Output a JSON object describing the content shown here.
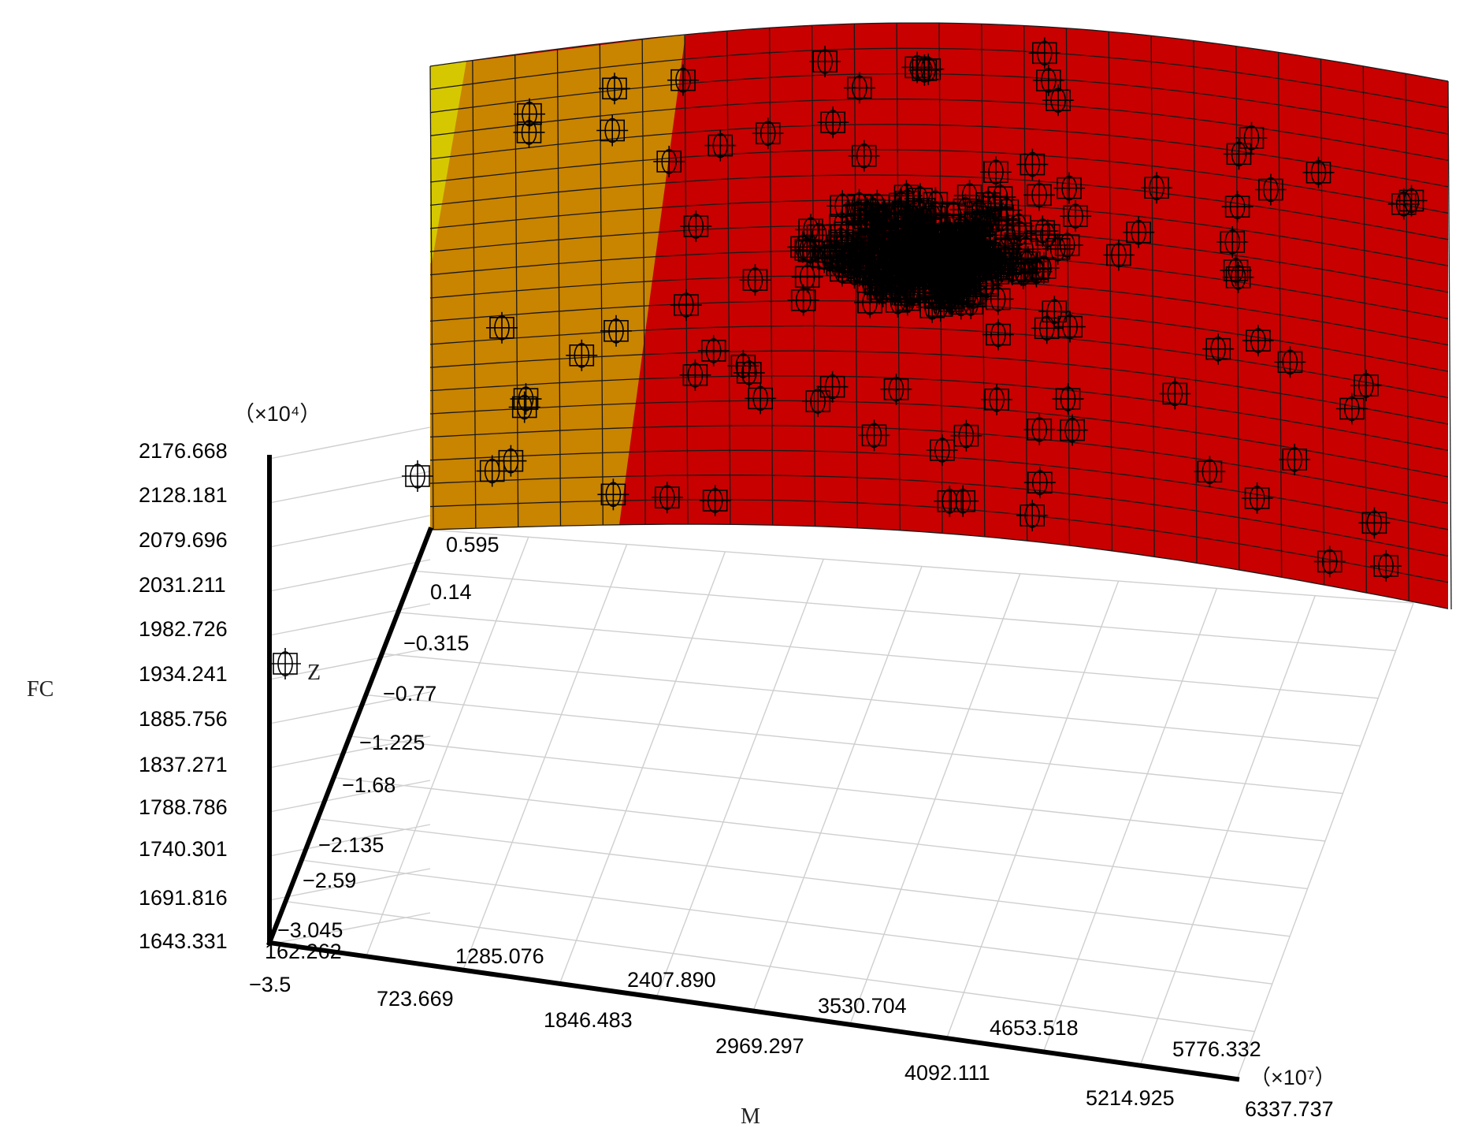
{
  "chart_data": {
    "type": "surface3d",
    "axes": {
      "fc": {
        "title": "FC",
        "multiplier": "（×10⁴）",
        "range": [
          1643.331,
          2176.668
        ],
        "ticks": [
          "1643.331",
          "1691.816",
          "1740.301",
          "1788.786",
          "1837.271",
          "1885.756",
          "1934.241",
          "1982.726",
          "2031.211",
          "2079.696",
          "2128.181",
          "2176.668"
        ]
      },
      "m": {
        "title": "M",
        "multiplier": "（×10⁷）",
        "range": [
          162.262,
          6337.737
        ],
        "ticks_upper": [
          "1285.076",
          "2407.890",
          "3530.704",
          "4653.518",
          "5776.332"
        ],
        "ticks_lower": [
          "162.262",
          "723.669",
          "1846.483",
          "2969.297",
          "4092.111",
          "5214.925",
          "6337.737"
        ]
      },
      "z": {
        "title": "Z",
        "range": [
          -3.5,
          0.595
        ],
        "ticks": [
          "−3.5",
          "−3.045",
          "−2.59",
          "−2.135",
          "−1.68",
          "−1.225",
          "−0.77",
          "−0.315",
          "0.14",
          "0.595"
        ]
      }
    },
    "surface_colors": {
      "band_1": "#d6c800",
      "band_2": "#c98400",
      "band_3": "#c80000"
    },
    "marker": "phi-box",
    "grid": true
  }
}
